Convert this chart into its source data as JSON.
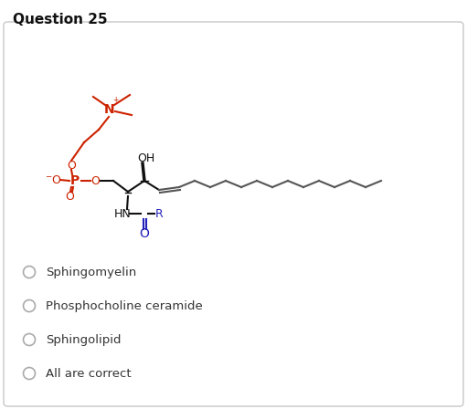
{
  "title": "Question 25",
  "background_color": "#ffffff",
  "border_color": "#c8c8c8",
  "options": [
    {
      "text": "Sphingomyelin",
      "color": "#333333"
    },
    {
      "text": "Phosphocholine ceramide",
      "color": "#333333"
    },
    {
      "text": "Sphingolipid",
      "color": "#333333"
    },
    {
      "text": "All are correct",
      "color": "#333333"
    }
  ],
  "red_color": "#cc2200",
  "blue_color": "#2222bb",
  "gray_color": "#555555",
  "black_color": "#111111",
  "radio_color": "#aaaaaa",
  "title_fontsize": 11,
  "option_fontsize": 9.5,
  "fig_width": 5.11,
  "fig_height": 4.48
}
